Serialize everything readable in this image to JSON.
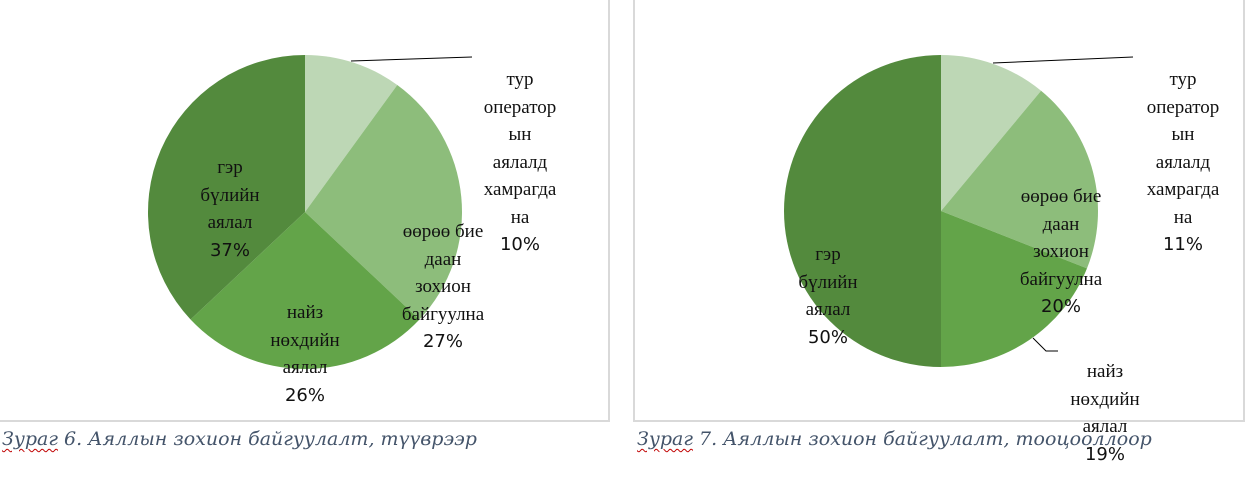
{
  "chart_data": [
    {
      "type": "pie",
      "title": "",
      "caption_prefix": "Зураг",
      "caption_rest": " 6. Аяллын зохион байгуулалт, түүврээр",
      "start_angle": "12 o'clock, clockwise",
      "categories": [
        "тур оператор ын аялалд хамрагда на",
        "өөрөө бие даан зохион байгуулна",
        "найз нөхдийн аялал",
        "гэр бүлийн аялал"
      ],
      "values": [
        10,
        27,
        26,
        37
      ],
      "colors": [
        "#bdd7b5",
        "#8dbd7b",
        "#63a449",
        "#538a3d"
      ],
      "labels": [
        {
          "lines": [
            "тур",
            "оператор",
            "ын",
            "аялалд",
            "хамрагда",
            "на"
          ],
          "pct": "10%"
        },
        {
          "lines": [
            "өөрөө бие",
            "даан",
            "зохион",
            "байгуулна"
          ],
          "pct": "27%"
        },
        {
          "lines": [
            "найз",
            "нөхдийн",
            "аялал"
          ],
          "pct": "26%"
        },
        {
          "lines": [
            "гэр",
            "бүлийн",
            "аялал"
          ],
          "pct": "37%"
        }
      ],
      "legend": "none (data labels with category name and percentage)"
    },
    {
      "type": "pie",
      "title": "",
      "caption_prefix": "Зураг",
      "caption_rest": " 7. Аяллын зохион байгуулалт, тооцооллоор",
      "start_angle": "12 o'clock, clockwise",
      "categories": [
        "тур оператор ын аялалд хамрагда на",
        "өөрөө бие даан зохион байгуулна",
        "найз нөхдийн аялал",
        "гэр бүлийн аялал"
      ],
      "values": [
        11,
        20,
        19,
        50
      ],
      "colors": [
        "#bdd7b5",
        "#8dbd7b",
        "#63a449",
        "#538a3d"
      ],
      "labels": [
        {
          "lines": [
            "тур",
            "оператор",
            "ын",
            "аялалд",
            "хамрагда",
            "на"
          ],
          "pct": "11%"
        },
        {
          "lines": [
            "өөрөө бие",
            "даан",
            "зохион",
            "байгуулна"
          ],
          "pct": "20%"
        },
        {
          "lines": [
            "найз",
            "нөхдийн",
            "аялал"
          ],
          "pct": "19%"
        },
        {
          "lines": [
            "гэр",
            "бүлийн",
            "аялал"
          ],
          "pct": "50%"
        }
      ],
      "legend": "none (data labels with category name and percentage)"
    }
  ]
}
